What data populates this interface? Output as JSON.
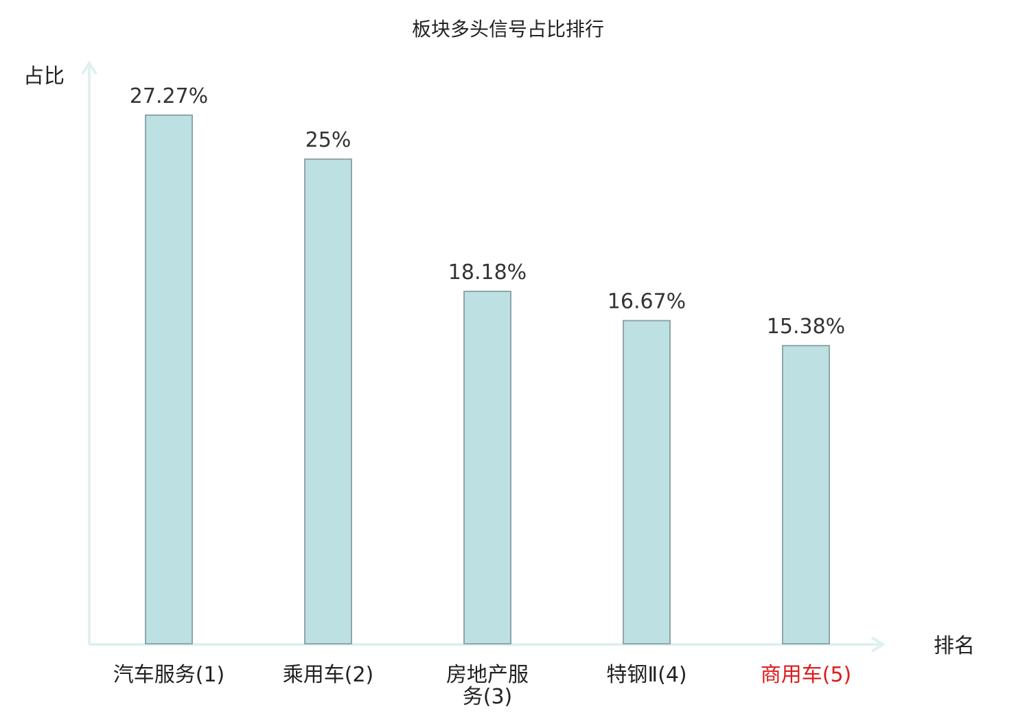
{
  "chart_data": {
    "type": "bar",
    "title": "板块多头信号占比排行",
    "ylabel": "占比",
    "xlabel": "排名",
    "categories": [
      "汽车服务(1)",
      "乘用车(2)",
      "房地产服务(3)",
      "特钢Ⅱ(4)",
      "商用车(5)"
    ],
    "category_lines": [
      [
        "汽车服务(1)"
      ],
      [
        "乘用车(2)"
      ],
      [
        "房地产服",
        "务(3)"
      ],
      [
        "特钢Ⅱ(4)"
      ],
      [
        "商用车(5)"
      ]
    ],
    "values": [
      27.27,
      25,
      18.18,
      16.67,
      15.38
    ],
    "value_labels": [
      "27.27%",
      "25%",
      "18.18%",
      "16.67%",
      "15.38%"
    ],
    "highlight_index": 4,
    "ylim": [
      0,
      27.27
    ],
    "grid": false,
    "colors": {
      "bar_fill": "#bde0e2",
      "bar_stroke": "#8ea5a7",
      "axis": "#dff1ef",
      "text": "#222222",
      "value_text": "#333333",
      "highlight": "#e01b1b"
    }
  }
}
